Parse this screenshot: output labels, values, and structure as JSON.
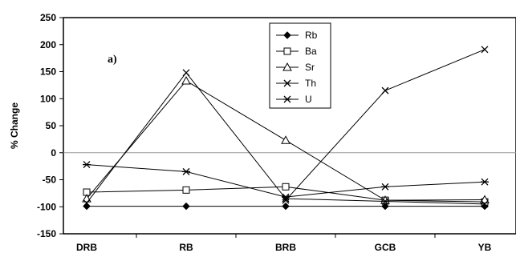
{
  "chart_data": {
    "type": "line",
    "panel_label": "a)",
    "title": "",
    "xlabel": "",
    "ylabel": "% Change",
    "categories": [
      "DRB",
      "RB",
      "BRB",
      "GCB",
      "YB"
    ],
    "ylim": [
      -150,
      250
    ],
    "yticks": [
      -150,
      -100,
      -50,
      0,
      50,
      100,
      150,
      200,
      250
    ],
    "grid": false,
    "zero_line": true,
    "legend_position": "top-center",
    "series": [
      {
        "name": "Rb",
        "marker": "filled-diamond",
        "values": [
          -99,
          -99,
          -99,
          -99,
          -99
        ]
      },
      {
        "name": "Ba",
        "marker": "open-square",
        "values": [
          -73,
          -69,
          -63,
          -88,
          -91
        ]
      },
      {
        "name": "Sr",
        "marker": "open-triangle",
        "values": [
          -85,
          133,
          23,
          -88,
          -87
        ]
      },
      {
        "name": "Th",
        "marker": "x",
        "values": [
          -93,
          148,
          -85,
          -90,
          -95
        ]
      },
      {
        "name": "U",
        "marker": "asterisk",
        "values": [
          -22,
          -35,
          -82,
          -63,
          -54
        ]
      },
      {
        "name": "",
        "marker": "x",
        "values": [
          null,
          null,
          -88,
          115,
          191
        ]
      }
    ]
  }
}
